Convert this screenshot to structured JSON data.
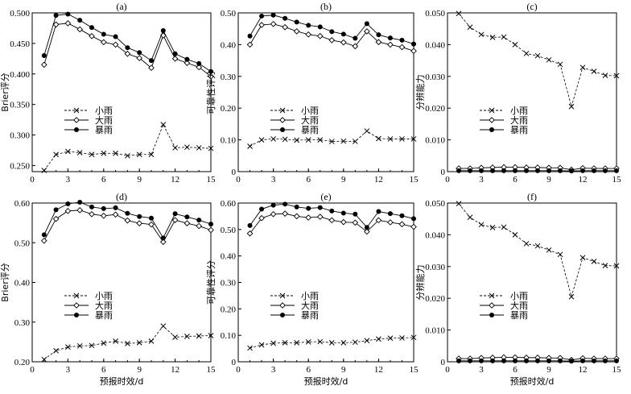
{
  "chart_data": [
    {
      "type": "line",
      "title": "(a)",
      "xlabel": "",
      "ylabel": "Brier评分",
      "xlim": [
        0,
        15
      ],
      "ylim": [
        0.24,
        0.5
      ],
      "xticks": [
        "0",
        "3",
        "6",
        "9",
        "12",
        "15"
      ],
      "yticks": [
        "0.250",
        "0.300",
        "0.350",
        "0.400",
        "0.450",
        "0.500"
      ],
      "ytick_values": [
        0.25,
        0.3,
        0.35,
        0.4,
        0.45,
        0.5
      ],
      "x": [
        1,
        2,
        3,
        4,
        5,
        6,
        7,
        8,
        9,
        10,
        11,
        12,
        13,
        14,
        15
      ],
      "series": [
        {
          "name": "小雨",
          "marker": "x",
          "values": [
            0.242,
            0.268,
            0.273,
            0.271,
            0.268,
            0.27,
            0.27,
            0.266,
            0.268,
            0.268,
            0.317,
            0.279,
            0.28,
            0.279,
            0.278
          ]
        },
        {
          "name": "大雨",
          "marker": "diamond",
          "values": [
            0.415,
            0.481,
            0.483,
            0.473,
            0.462,
            0.452,
            0.448,
            0.433,
            0.426,
            0.41,
            0.463,
            0.425,
            0.418,
            0.411,
            0.396
          ]
        },
        {
          "name": "暴雨",
          "marker": "dot",
          "values": [
            0.43,
            0.496,
            0.498,
            0.488,
            0.476,
            0.465,
            0.461,
            0.443,
            0.435,
            0.422,
            0.471,
            0.433,
            0.424,
            0.417,
            0.404
          ]
        }
      ],
      "legend": "middle-left"
    },
    {
      "type": "line",
      "title": "(b)",
      "xlabel": "",
      "ylabel": "可靠性评分",
      "xlim": [
        0,
        15
      ],
      "ylim": [
        0,
        0.5
      ],
      "xticks": [
        "0",
        "3",
        "6",
        "9",
        "12",
        "15"
      ],
      "yticks": [
        "0",
        "0.10",
        "0.20",
        "0.30",
        "0.40",
        "0.50"
      ],
      "ytick_values": [
        0,
        0.1,
        0.2,
        0.3,
        0.4,
        0.5
      ],
      "x": [
        1,
        2,
        3,
        4,
        5,
        6,
        7,
        8,
        9,
        10,
        11,
        12,
        13,
        14,
        15
      ],
      "series": [
        {
          "name": "小雨",
          "marker": "x",
          "values": [
            0.08,
            0.1,
            0.103,
            0.102,
            0.099,
            0.1,
            0.1,
            0.095,
            0.096,
            0.095,
            0.128,
            0.104,
            0.103,
            0.103,
            0.103
          ]
        },
        {
          "name": "大雨",
          "marker": "diamond",
          "values": [
            0.4,
            0.462,
            0.465,
            0.455,
            0.442,
            0.432,
            0.427,
            0.414,
            0.407,
            0.395,
            0.442,
            0.408,
            0.4,
            0.392,
            0.38
          ]
        },
        {
          "name": "暴雨",
          "marker": "dot",
          "values": [
            0.427,
            0.49,
            0.493,
            0.483,
            0.471,
            0.461,
            0.456,
            0.441,
            0.433,
            0.42,
            0.466,
            0.431,
            0.421,
            0.414,
            0.402
          ]
        }
      ],
      "legend": "middle-left"
    },
    {
      "type": "line",
      "title": "(c)",
      "xlabel": "",
      "ylabel": "分辨能力",
      "xlim": [
        0,
        15
      ],
      "ylim": [
        0,
        0.05
      ],
      "xticks": [
        "0",
        "3",
        "6",
        "9",
        "12",
        "15"
      ],
      "yticks": [
        "0",
        "0.010",
        "0.020",
        "0.030",
        "0.040",
        "0.050"
      ],
      "ytick_values": [
        0,
        0.01,
        0.02,
        0.03,
        0.04,
        0.05
      ],
      "x": [
        1,
        2,
        3,
        4,
        5,
        6,
        7,
        8,
        9,
        10,
        11,
        12,
        13,
        14,
        15
      ],
      "series": [
        {
          "name": "小雨",
          "marker": "x",
          "values": [
            0.0498,
            0.0455,
            0.0432,
            0.0423,
            0.0424,
            0.04,
            0.0372,
            0.0365,
            0.0352,
            0.0338,
            0.0205,
            0.0328,
            0.0316,
            0.0303,
            0.0302
          ]
        },
        {
          "name": "大雨",
          "marker": "diamond",
          "values": [
            0.001,
            0.001,
            0.0012,
            0.0013,
            0.0014,
            0.0014,
            0.0013,
            0.0013,
            0.0012,
            0.0012,
            0.0006,
            0.0011,
            0.001,
            0.001,
            0.001
          ]
        },
        {
          "name": "暴雨",
          "marker": "dot",
          "values": [
            0.0003,
            0.0003,
            0.0003,
            0.0003,
            0.0003,
            0.0003,
            0.0003,
            0.0003,
            0.0003,
            0.0003,
            0.0002,
            0.0003,
            0.0003,
            0.0003,
            0.0003
          ]
        }
      ],
      "legend": "middle-right"
    },
    {
      "type": "line",
      "title": "(d)",
      "xlabel": "预报时效/d",
      "ylabel": "Brier评分",
      "xlim": [
        0,
        15
      ],
      "ylim": [
        0.2,
        0.6
      ],
      "xticks": [
        "0",
        "3",
        "6",
        "9",
        "12",
        "15"
      ],
      "yticks": [
        "0.20",
        "0.30",
        "0.40",
        "0.50",
        "0.60"
      ],
      "ytick_values": [
        0.2,
        0.3,
        0.4,
        0.5,
        0.6
      ],
      "x": [
        1,
        2,
        3,
        4,
        5,
        6,
        7,
        8,
        9,
        10,
        11,
        12,
        13,
        14,
        15
      ],
      "series": [
        {
          "name": "小雨",
          "marker": "x",
          "values": [
            0.206,
            0.228,
            0.237,
            0.24,
            0.241,
            0.247,
            0.252,
            0.246,
            0.248,
            0.252,
            0.29,
            0.262,
            0.264,
            0.265,
            0.266
          ]
        },
        {
          "name": "大雨",
          "marker": "diamond",
          "values": [
            0.505,
            0.56,
            0.58,
            0.582,
            0.572,
            0.568,
            0.571,
            0.556,
            0.549,
            0.546,
            0.502,
            0.557,
            0.549,
            0.542,
            0.532
          ]
        },
        {
          "name": "暴雨",
          "marker": "dot",
          "values": [
            0.52,
            0.583,
            0.598,
            0.602,
            0.59,
            0.586,
            0.588,
            0.574,
            0.566,
            0.562,
            0.512,
            0.573,
            0.565,
            0.557,
            0.547
          ]
        }
      ],
      "legend": "bottom-left"
    },
    {
      "type": "line",
      "title": "(e)",
      "xlabel": "预报时效/d",
      "ylabel": "可靠性评分",
      "xlim": [
        0,
        15
      ],
      "ylim": [
        0,
        0.6
      ],
      "xticks": [
        "0",
        "3",
        "6",
        "9",
        "12",
        "15"
      ],
      "yticks": [
        "0",
        "0.10",
        "0.20",
        "0.30",
        "0.40",
        "0.50",
        "0.60"
      ],
      "ytick_values": [
        0,
        0.1,
        0.2,
        0.3,
        0.4,
        0.5,
        0.6
      ],
      "x": [
        1,
        2,
        3,
        4,
        5,
        6,
        7,
        8,
        9,
        10,
        11,
        12,
        13,
        14,
        15
      ],
      "series": [
        {
          "name": "小雨",
          "marker": "x",
          "values": [
            0.052,
            0.064,
            0.07,
            0.072,
            0.072,
            0.075,
            0.076,
            0.072,
            0.072,
            0.074,
            0.08,
            0.086,
            0.089,
            0.09,
            0.092
          ]
        },
        {
          "name": "大雨",
          "marker": "diamond",
          "values": [
            0.485,
            0.543,
            0.558,
            0.56,
            0.55,
            0.545,
            0.548,
            0.535,
            0.528,
            0.526,
            0.492,
            0.535,
            0.527,
            0.52,
            0.51
          ]
        },
        {
          "name": "暴雨",
          "marker": "dot",
          "values": [
            0.515,
            0.577,
            0.592,
            0.596,
            0.585,
            0.58,
            0.583,
            0.57,
            0.562,
            0.558,
            0.508,
            0.568,
            0.56,
            0.552,
            0.541
          ]
        }
      ],
      "legend": "bottom-left"
    },
    {
      "type": "line",
      "title": "(f)",
      "xlabel": "预报时效/d",
      "ylabel": "分辨能力",
      "xlim": [
        0,
        15
      ],
      "ylim": [
        0,
        0.05
      ],
      "xticks": [
        "0",
        "3",
        "6",
        "9",
        "12",
        "15"
      ],
      "yticks": [
        "0",
        "0.010",
        "0.020",
        "0.030",
        "0.040",
        "0.050"
      ],
      "ytick_values": [
        0,
        0.01,
        0.02,
        0.03,
        0.04,
        0.05
      ],
      "x": [
        1,
        2,
        3,
        4,
        5,
        6,
        7,
        8,
        9,
        10,
        11,
        12,
        13,
        14,
        15
      ],
      "series": [
        {
          "name": "小雨",
          "marker": "x",
          "values": [
            0.0498,
            0.0455,
            0.0432,
            0.0423,
            0.0424,
            0.04,
            0.0372,
            0.0365,
            0.0352,
            0.0338,
            0.0205,
            0.0328,
            0.0316,
            0.0303,
            0.0302
          ]
        },
        {
          "name": "大雨",
          "marker": "diamond",
          "values": [
            0.001,
            0.001,
            0.0012,
            0.0013,
            0.0014,
            0.0014,
            0.0013,
            0.0013,
            0.0012,
            0.0012,
            0.0006,
            0.0011,
            0.001,
            0.001,
            0.001
          ]
        },
        {
          "name": "暴雨",
          "marker": "dot",
          "values": [
            0.0003,
            0.0003,
            0.0003,
            0.0003,
            0.0003,
            0.0003,
            0.0003,
            0.0003,
            0.0003,
            0.0003,
            0.0002,
            0.0003,
            0.0003,
            0.0003,
            0.0003
          ]
        }
      ],
      "legend": "middle-right"
    }
  ]
}
